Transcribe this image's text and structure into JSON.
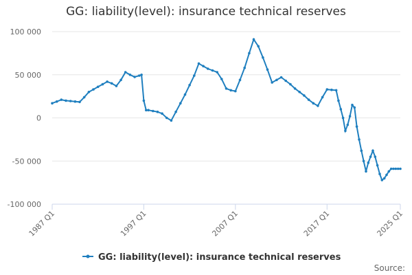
{
  "chart_data": {
    "type": "line",
    "title": "GG: liability(level): insurance technical reserves",
    "xlabel": "",
    "ylabel": "",
    "ylim": [
      -100000,
      100000
    ],
    "yticks": [
      100000,
      50000,
      0,
      -50000,
      -100000
    ],
    "ytick_labels": [
      "100 000",
      "50 000",
      "0",
      "-50 000",
      "-100 000"
    ],
    "xticks": [
      1987.0,
      1997.0,
      2007.0,
      2017.0,
      2025.0
    ],
    "xtick_labels": [
      "1987 Q1",
      "1997 Q1",
      "2007 Q1",
      "2017 Q1",
      "2025 Q1"
    ],
    "xlim": [
      1987.0,
      2025.0
    ],
    "grid": true,
    "legend_position": "bottom",
    "series": [
      {
        "name": "GG: liability(level): insurance technical reserves",
        "color": "#1f7fbf",
        "x": [
          1987.0,
          1987.5,
          1988.0,
          1988.5,
          1989.0,
          1989.5,
          1990.0,
          1990.5,
          1991.0,
          1991.5,
          1992.0,
          1992.5,
          1993.0,
          1993.5,
          1994.0,
          1994.5,
          1995.0,
          1995.5,
          1996.0,
          1996.5,
          1996.75,
          1997.0,
          1997.25,
          1997.5,
          1998.0,
          1998.5,
          1999.0,
          1999.5,
          2000.0,
          2000.5,
          2001.0,
          2001.5,
          2002.0,
          2002.5,
          2003.0,
          2003.5,
          2004.0,
          2004.5,
          2005.0,
          2005.5,
          2006.0,
          2006.5,
          2007.0,
          2007.5,
          2008.0,
          2008.5,
          2009.0,
          2009.5,
          2010.0,
          2010.5,
          2011.0,
          2011.5,
          2012.0,
          2012.5,
          2013.0,
          2013.5,
          2014.0,
          2014.5,
          2015.0,
          2015.5,
          2016.0,
          2016.5,
          2017.0,
          2017.5,
          2018.0,
          2018.25,
          2018.5,
          2018.75,
          2019.0,
          2019.25,
          2019.5,
          2019.75,
          2020.0,
          2020.25,
          2020.5,
          2020.75,
          2021.0,
          2021.25,
          2021.5,
          2021.75,
          2022.0,
          2022.25,
          2022.5,
          2022.75,
          2023.0,
          2023.25,
          2023.5,
          2023.75,
          2024.0,
          2024.25,
          2024.5,
          2024.75,
          2025.0
        ],
        "values": [
          17000,
          19000,
          21000,
          20000,
          19500,
          19000,
          18500,
          24000,
          30000,
          33000,
          36000,
          39000,
          42000,
          40000,
          37000,
          44000,
          53000,
          50000,
          47500,
          49000,
          50000,
          20000,
          9000,
          9000,
          8000,
          7000,
          5000,
          0,
          -3000,
          7000,
          17000,
          27000,
          38000,
          49000,
          63000,
          60000,
          57000,
          55000,
          53000,
          45000,
          34000,
          32000,
          31000,
          44000,
          58000,
          75000,
          91000,
          83000,
          70000,
          56000,
          41000,
          44000,
          47000,
          43000,
          39000,
          34000,
          30000,
          26000,
          21000,
          17000,
          14000,
          24000,
          33000,
          32500,
          32000,
          20000,
          10000,
          0,
          -15000,
          -8000,
          2000,
          15000,
          12000,
          -10000,
          -25000,
          -38000,
          -50000,
          -62000,
          -52000,
          -45000,
          -38000,
          -45000,
          -55000,
          -65000,
          -72000,
          -70000,
          -66000,
          -62000,
          -59000,
          -59000,
          -59000,
          -59000,
          -59000
        ]
      }
    ],
    "source_label": "Source:"
  }
}
